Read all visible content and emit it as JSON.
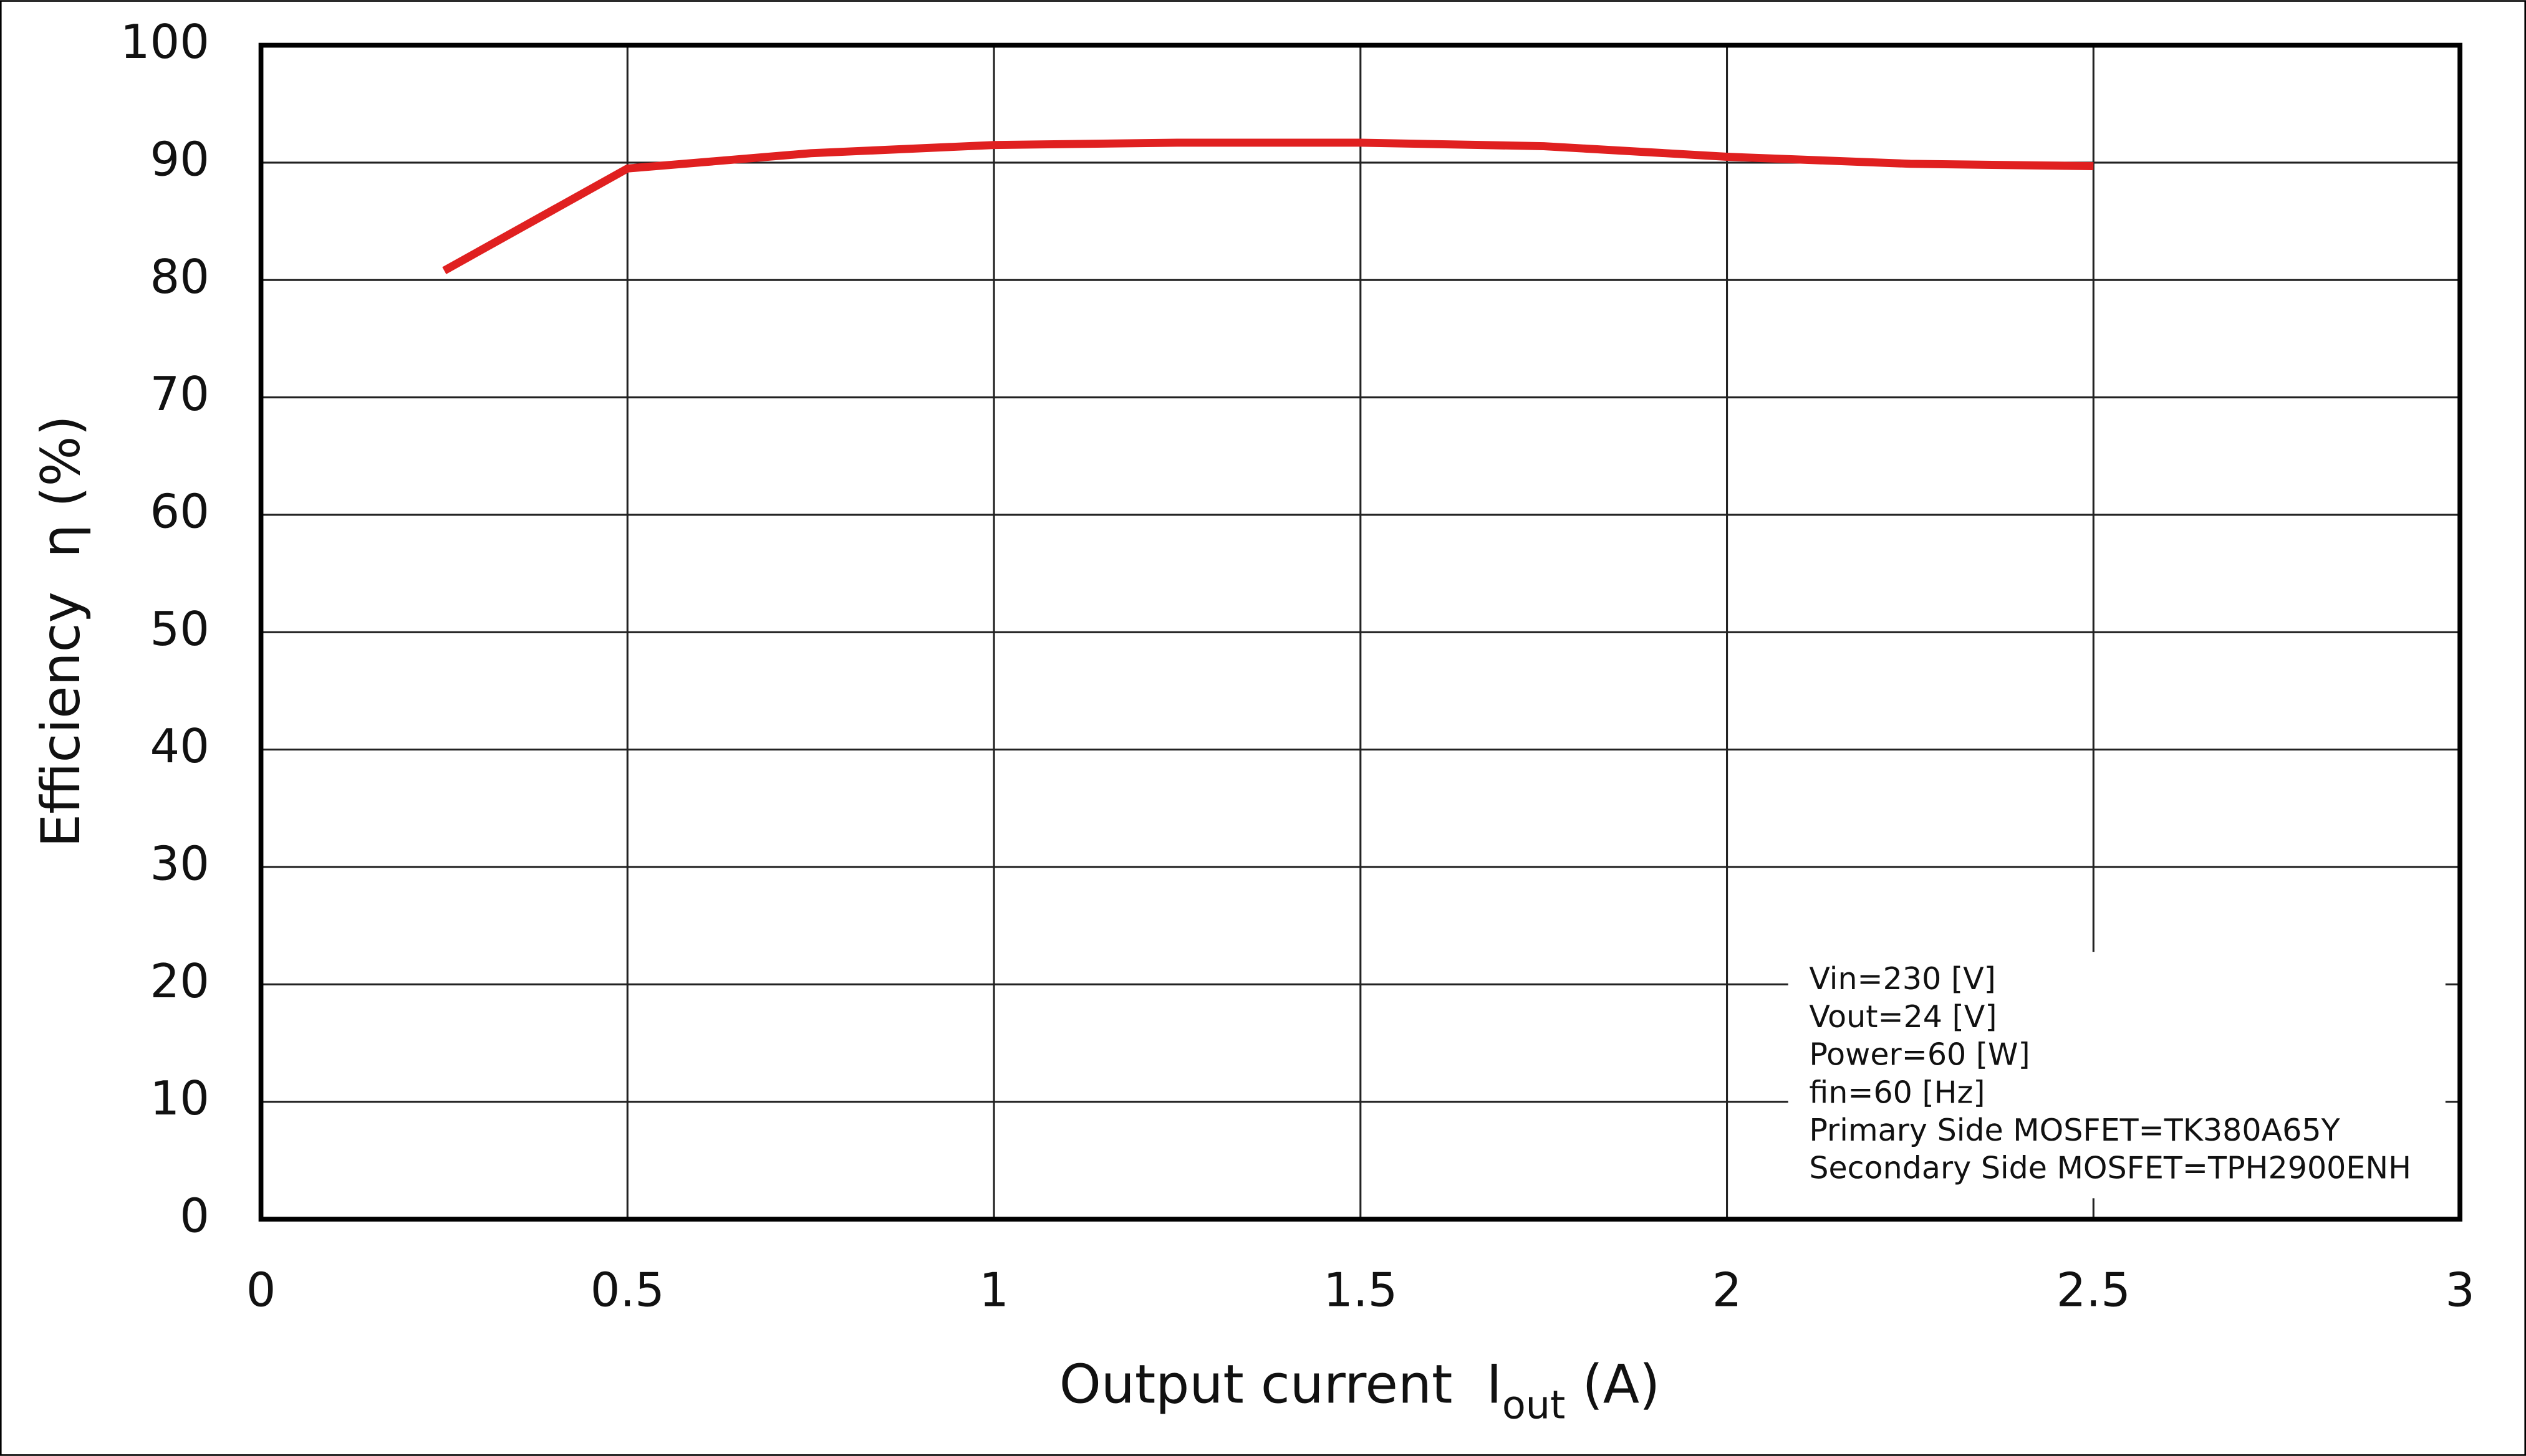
{
  "chart_data": {
    "type": "line",
    "ylabel": "Efficiency  η (%)",
    "xlabel": {
      "text": "Output current  I",
      "subscript": "out",
      "suffix": " (A)"
    },
    "x": [
      0.25,
      0.5,
      0.75,
      1,
      1.25,
      1.5,
      1.75,
      2,
      2.25,
      2.5
    ],
    "series": [
      {
        "color": "#e02020",
        "values": [
          80.8,
          89.5,
          90.8,
          91.5,
          91.7,
          91.7,
          91.4,
          90.5,
          89.9,
          89.7
        ]
      }
    ],
    "xlim": [
      0,
      3
    ],
    "xticks": [
      0,
      0.5,
      1,
      1.5,
      2,
      2.5,
      3
    ],
    "ylim": [
      0,
      100
    ],
    "yticks": [
      0,
      10,
      20,
      30,
      40,
      50,
      60,
      70,
      80,
      90,
      100
    ],
    "grid": true,
    "annotation": [
      "Vin=230 [V]",
      "Vout=24 [V]",
      "Power=60 [W]",
      "fin=60 [Hz]",
      "Primary Side MOSFET=TK380A65Y",
      "Secondary Side MOSFET=TPH2900ENH"
    ]
  }
}
